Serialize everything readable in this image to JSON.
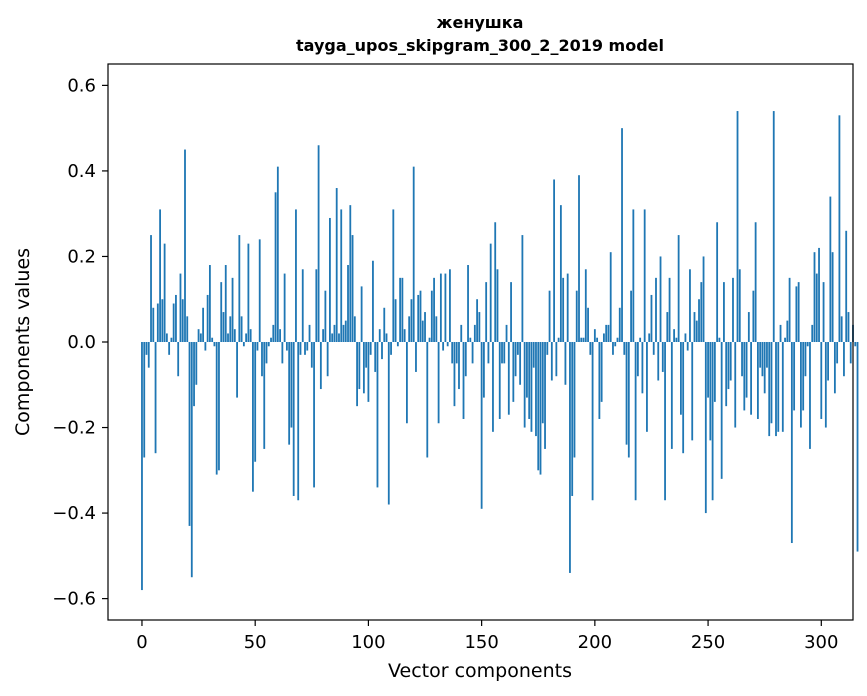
{
  "chart_data": {
    "type": "bar",
    "title_line1": "женушка",
    "title_line2": "tayga_upos_skipgram_300_2_2019 model",
    "xlabel": "Vector components",
    "ylabel": "Components values",
    "xlim": [
      -15,
      314
    ],
    "ylim": [
      -0.65,
      0.65
    ],
    "xticks": [
      0,
      50,
      100,
      150,
      200,
      250,
      300
    ],
    "yticks": [
      -0.6,
      -0.4,
      -0.2,
      0.0,
      0.2,
      0.4,
      0.6
    ],
    "ytick_labels": [
      "−0.6",
      "−0.4",
      "−0.2",
      "0.0",
      "0.2",
      "0.4",
      "0.6"
    ],
    "bar_color": "#1f77b4",
    "values": [
      -0.58,
      -0.27,
      -0.03,
      -0.06,
      0.25,
      0.08,
      -0.26,
      0.09,
      0.31,
      0.1,
      0.23,
      0.02,
      -0.03,
      0.01,
      0.09,
      0.11,
      -0.08,
      0.16,
      0.1,
      0.45,
      0.06,
      -0.43,
      -0.55,
      -0.15,
      -0.1,
      0.03,
      0.02,
      0.08,
      -0.02,
      0.11,
      0.18,
      0.01,
      -0.01,
      -0.31,
      -0.3,
      0.14,
      0.07,
      0.18,
      0.02,
      0.06,
      0.15,
      0.03,
      -0.13,
      0.25,
      0.06,
      -0.01,
      0.02,
      0.23,
      0.03,
      -0.35,
      -0.28,
      -0.02,
      0.24,
      -0.08,
      -0.25,
      -0.05,
      -0.01,
      0.01,
      0.04,
      0.35,
      0.41,
      0.03,
      -0.05,
      0.16,
      -0.02,
      -0.24,
      -0.2,
      -0.36,
      0.31,
      -0.37,
      -0.03,
      0.17,
      -0.03,
      -0.02,
      0.04,
      -0.06,
      -0.34,
      0.17,
      0.46,
      -0.11,
      0.03,
      0.12,
      -0.08,
      0.29,
      0.02,
      0.04,
      0.36,
      0.02,
      0.31,
      0.04,
      0.05,
      0.18,
      0.32,
      0.25,
      0.06,
      -0.15,
      -0.11,
      0.13,
      -0.12,
      -0.06,
      -0.14,
      -0.03,
      0.19,
      -0.07,
      -0.34,
      0.03,
      -0.04,
      0.08,
      0.02,
      -0.38,
      -0.03,
      0.31,
      0.1,
      -0.01,
      0.15,
      0.15,
      0.03,
      -0.19,
      0.06,
      0.1,
      0.41,
      -0.07,
      0.11,
      0.12,
      0.05,
      0.07,
      -0.27,
      0.01,
      0.12,
      0.15,
      0.06,
      -0.19,
      0.16,
      -0.02,
      0.16,
      -0.01,
      0.17,
      -0.05,
      -0.15,
      -0.05,
      -0.11,
      0.04,
      -0.18,
      -0.08,
      0.18,
      0.01,
      -0.05,
      0.04,
      0.1,
      0.07,
      -0.39,
      -0.13,
      0.14,
      -0.05,
      0.23,
      -0.21,
      0.28,
      0.17,
      -0.18,
      -0.05,
      -0.05,
      0.04,
      -0.17,
      0.14,
      -0.14,
      -0.08,
      -0.03,
      -0.1,
      0.25,
      -0.2,
      -0.13,
      -0.18,
      -0.21,
      -0.06,
      -0.22,
      -0.3,
      -0.31,
      -0.19,
      -0.25,
      -0.03,
      0.12,
      -0.09,
      0.38,
      -0.08,
      0.01,
      0.32,
      0.15,
      -0.1,
      0.16,
      -0.54,
      -0.36,
      -0.27,
      0.12,
      0.39,
      0.01,
      0.01,
      0.17,
      0.08,
      -0.03,
      -0.37,
      0.03,
      0.01,
      -0.18,
      -0.14,
      0.02,
      0.04,
      0.04,
      0.21,
      -0.03,
      -0.01,
      0.01,
      0.08,
      0.5,
      -0.03,
      -0.24,
      -0.27,
      0.12,
      0.31,
      -0.37,
      -0.08,
      0.01,
      -0.12,
      0.31,
      -0.21,
      0.02,
      0.11,
      -0.03,
      0.15,
      -0.09,
      0.2,
      -0.07,
      -0.37,
      0.07,
      0.15,
      -0.25,
      0.03,
      0.01,
      0.25,
      -0.17,
      -0.26,
      0.02,
      -0.02,
      0.17,
      -0.23,
      0.07,
      0.05,
      0.1,
      0.14,
      0.2,
      -0.4,
      -0.13,
      -0.23,
      -0.37,
      -0.14,
      0.28,
      0.01,
      -0.32,
      0.14,
      -0.15,
      -0.11,
      -0.09,
      0.15,
      -0.2,
      0.54,
      0.17,
      -0.08,
      -0.16,
      -0.13,
      0.07,
      -0.17,
      0.12,
      0.28,
      -0.18,
      -0.06,
      -0.08,
      -0.12,
      -0.06,
      -0.22,
      -0.19,
      0.54,
      -0.22,
      -0.21,
      0.04,
      -0.21,
      0.01,
      0.05,
      0.15,
      -0.47,
      -0.16,
      0.13,
      0.14,
      -0.2,
      -0.16,
      -0.08,
      -0.01,
      -0.25,
      0.04,
      0.21,
      0.16,
      0.22,
      -0.18,
      0.14,
      -0.2,
      -0.09,
      0.34,
      0.21,
      -0.12,
      -0.05,
      0.53,
      0.06,
      -0.08,
      0.26,
      0.07,
      -0.05,
      0.04,
      -0.01,
      -0.49
    ]
  }
}
